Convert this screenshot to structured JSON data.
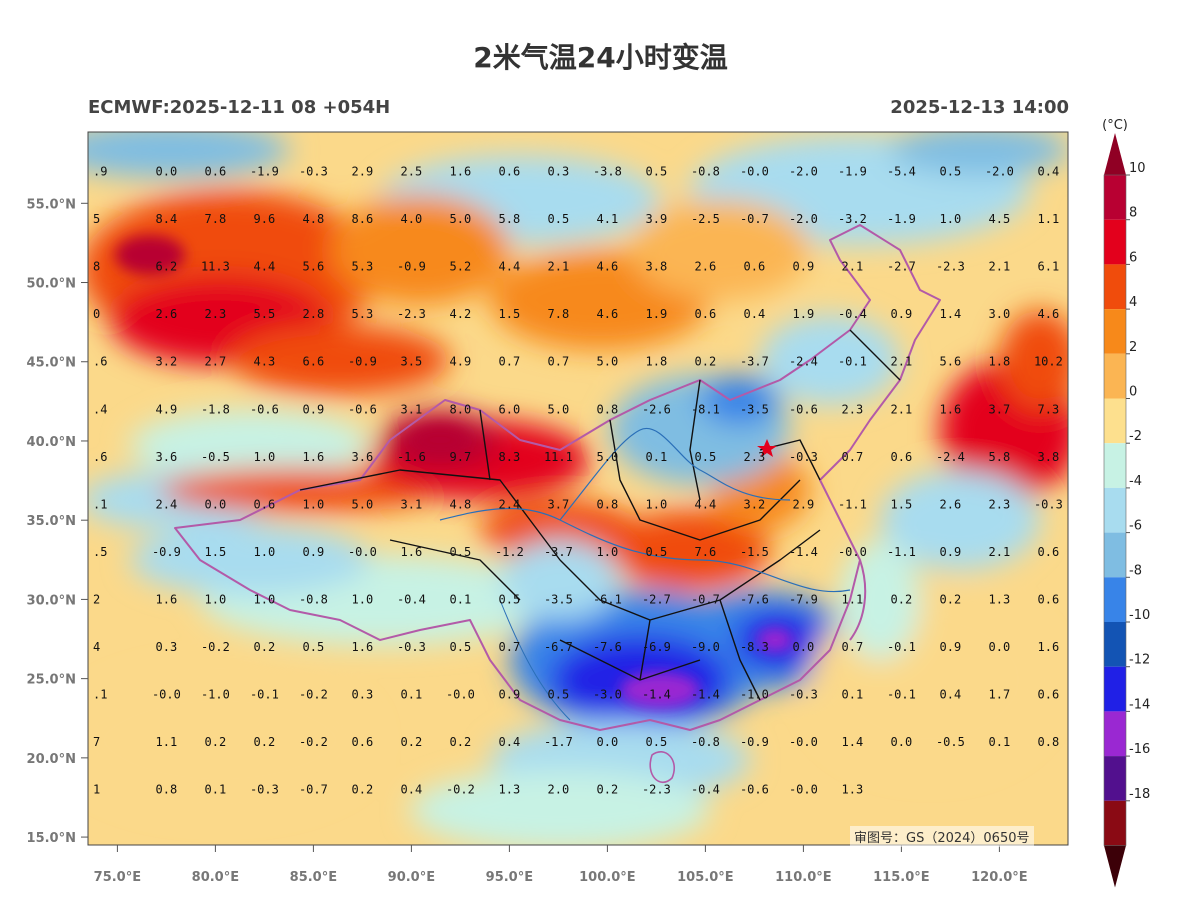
{
  "title": "2米气温24小时变温",
  "subtitle_left": "ECMWF:2025-12-11 08 +054H",
  "subtitle_right": "2025-12-13 14:00",
  "approval_number": "审图号：GS（2024）0650号",
  "watermark_text": "",
  "map": {
    "lon_range": [
      73.5,
      123.5
    ],
    "lat_range": [
      14.5,
      59.5
    ],
    "lon_ticks": [
      "75.0°E",
      "80.0°E",
      "85.0°E",
      "90.0°E",
      "95.0°E",
      "100.0°E",
      "105.0°E",
      "110.0°E",
      "115.0°E",
      "120.0°E"
    ],
    "lat_ticks": [
      "15.0°N",
      "20.0°N",
      "25.0°N",
      "30.0°N",
      "35.0°N",
      "40.0°N",
      "45.0°N",
      "50.0°N",
      "55.0°N"
    ],
    "value_lats": [
      57,
      54,
      51,
      48,
      45,
      42,
      39,
      36,
      33,
      30,
      27,
      24,
      21,
      18
    ],
    "grid_values": [
      [
        ".9",
        "0.0",
        "0.6",
        "-1.9",
        "-0.3",
        "2.9",
        "2.5",
        "1.6",
        "0.6",
        "0.3",
        "-3.8",
        "0.5",
        "-0.8",
        "-0.0",
        "-2.0",
        "-1.9",
        "-5.4",
        "0.5",
        "-2.0",
        "0.4"
      ],
      [
        "5",
        "8.4",
        "7.8",
        "9.6",
        "4.8",
        "8.6",
        "4.0",
        "5.0",
        "5.8",
        "0.5",
        "4.1",
        "3.9",
        "-2.5",
        "-0.7",
        "-2.0",
        "-3.2",
        "-1.9",
        "1.0",
        "4.5",
        "1.1"
      ],
      [
        "8",
        "6.2",
        "11.3",
        "4.4",
        "5.6",
        "5.3",
        "-0.9",
        "5.2",
        "4.4",
        "2.1",
        "4.6",
        "3.8",
        "2.6",
        "0.6",
        "0.9",
        "2.1",
        "-2.7",
        "-2.3",
        "2.1",
        "6.1"
      ],
      [
        "0",
        "2.6",
        "2.3",
        "5.5",
        "2.8",
        "5.3",
        "-2.3",
        "4.2",
        "1.5",
        "7.8",
        "4.6",
        "1.9",
        "0.6",
        "0.4",
        "1.9",
        "-0.4",
        "0.9",
        "1.4",
        "3.0",
        "4.6"
      ],
      [
        ".6",
        "3.2",
        "2.7",
        "4.3",
        "6.6",
        "-0.9",
        "3.5",
        "4.9",
        "0.7",
        "0.7",
        "5.0",
        "1.8",
        "0.2",
        "-3.7",
        "-2.4",
        "-0.1",
        "2.1",
        "5.6",
        "1.8",
        "10.2"
      ],
      [
        ".4",
        "4.9",
        "-1.8",
        "-0.6",
        "0.9",
        "-0.6",
        "3.1",
        "8.0",
        "6.0",
        "5.0",
        "0.8",
        "-2.6",
        "-8.1",
        "-3.5",
        "-0.6",
        "2.3",
        "2.1",
        "1.6",
        "3.7",
        "7.3"
      ],
      [
        ".6",
        "3.6",
        "-0.5",
        "1.0",
        "1.6",
        "3.6",
        "-1.6",
        "9.7",
        "8.3",
        "11.1",
        "5.0",
        "0.1",
        "0.5",
        "2.3",
        "-0.3",
        "0.7",
        "0.6",
        "-2.4",
        "5.8",
        "3.8"
      ],
      [
        ".1",
        "2.4",
        "0.0",
        "0.6",
        "1.0",
        "5.0",
        "3.1",
        "4.8",
        "2.4",
        "3.7",
        "0.8",
        "1.0",
        "4.4",
        "3.2",
        "2.9",
        "-1.1",
        "1.5",
        "2.6",
        "2.3",
        "-0.3"
      ],
      [
        ".5",
        "-0.9",
        "1.5",
        "1.0",
        "0.9",
        "-0.0",
        "1.6",
        "0.5",
        "-1.2",
        "-3.7",
        "1.0",
        "0.5",
        "7.6",
        "-1.5",
        "-1.4",
        "-0.0",
        "-1.1",
        "0.9",
        "2.1",
        "0.6"
      ],
      [
        "2",
        "1.6",
        "1.0",
        "1.0",
        "-0.8",
        "1.0",
        "-0.4",
        "0.1",
        "0.5",
        "-3.5",
        "-6.1",
        "-2.7",
        "-0.7",
        "-7.6",
        "-7.9",
        "1.1",
        "0.2",
        "0.2",
        "1.3",
        "0.6"
      ],
      [
        "4",
        "0.3",
        "-0.2",
        "0.2",
        "0.5",
        "1.6",
        "-0.3",
        "0.5",
        "0.7",
        "-6.7",
        "-7.6",
        "-6.9",
        "-9.0",
        "-8.3",
        "0.0",
        "0.7",
        "-0.1",
        "0.9",
        "0.0",
        "1.6"
      ],
      [
        ".1",
        "-0.0",
        "-1.0",
        "-0.1",
        "-0.2",
        "0.3",
        "0.1",
        "-0.0",
        "0.9",
        "0.5",
        "-3.0",
        "-1.4",
        "-1.4",
        "-1.0",
        "-0.3",
        "0.1",
        "-0.1",
        "0.4",
        "1.7",
        "0.6"
      ],
      [
        "7",
        "1.1",
        "0.2",
        "0.2",
        "-0.2",
        "0.6",
        "0.2",
        "0.2",
        "0.4",
        "-1.7",
        "0.0",
        "0.5",
        "-0.8",
        "-0.9",
        "-0.0",
        "1.4",
        "0.0",
        "-0.5",
        "0.1",
        "0.8"
      ],
      [
        "1",
        "0.8",
        "0.1",
        "-0.3",
        "-0.7",
        "0.2",
        "0.4",
        "-0.2",
        "1.3",
        "2.0",
        "0.2",
        "-2.3",
        "-0.4",
        "-0.6",
        "-0.0",
        "1.3",
        "",
        "",
        "",
        ""
      ]
    ]
  },
  "colorbar": {
    "unit": "(°C)",
    "labels": [
      "10",
      "8",
      "6",
      "4",
      "2",
      "0",
      "-2",
      "-4",
      "-6",
      "-8",
      "-10",
      "-12",
      "-14",
      "-16",
      "-18"
    ],
    "colors": [
      "#b80032",
      "#e3001c",
      "#f04c0c",
      "#f7891a",
      "#fbb553",
      "#fde08e",
      "#c7f2e4",
      "#a8dcef",
      "#7fbde2",
      "#3884e8",
      "#1354b4",
      "#2020e6",
      "#9a28d2",
      "#52108e",
      "#8a0a14"
    ],
    "top_color": "#900024",
    "bottom_color": "#3c0008"
  }
}
